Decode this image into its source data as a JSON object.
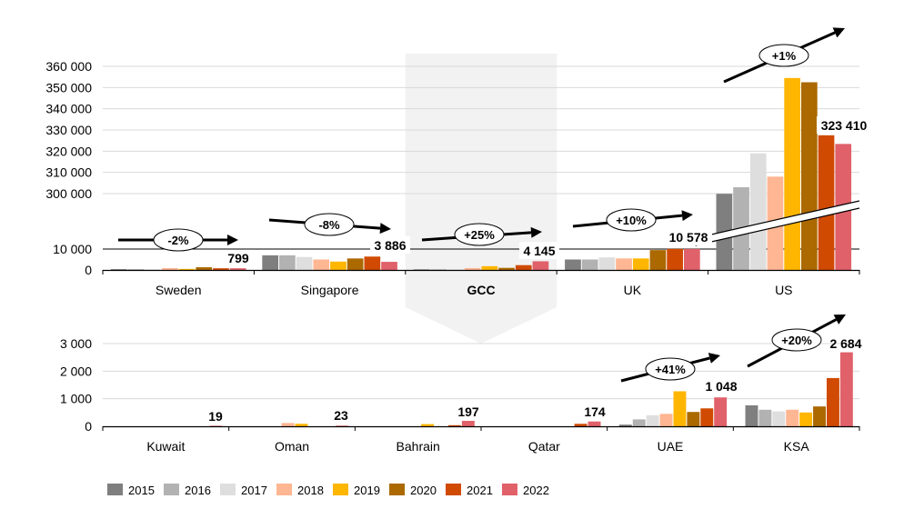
{
  "chart_data": [
    {
      "type": "bar",
      "title": "",
      "xlabel": "",
      "ylabel": "",
      "axis_break": {
        "low_max": 10000,
        "high_min": 300000
      },
      "ylim": [
        0,
        360000
      ],
      "yticks": [
        "0",
        "10 000",
        "300 000",
        "310 000",
        "320 000",
        "330 000",
        "340 000",
        "350 000",
        "360 000"
      ],
      "ytick_values": [
        0,
        10000,
        300000,
        310000,
        320000,
        330000,
        340000,
        350000,
        360000
      ],
      "categories": [
        "Sweden",
        "Singapore",
        "GCC",
        "UK",
        "US"
      ],
      "highlight_category": "GCC",
      "series": [
        {
          "name": "2015",
          "values": [
            400,
            7000,
            300,
            5000,
            299000
          ]
        },
        {
          "name": "2016",
          "values": [
            400,
            7000,
            300,
            5000,
            303000
          ]
        },
        {
          "name": "2017",
          "values": [
            300,
            6200,
            200,
            6000,
            319000
          ]
        },
        {
          "name": "2018",
          "values": [
            900,
            5000,
            900,
            5500,
            308000
          ]
        },
        {
          "name": "2019",
          "values": [
            500,
            4000,
            1800,
            5500,
            354500
          ]
        },
        {
          "name": "2020",
          "values": [
            1300,
            5500,
            1000,
            9500,
            352500
          ]
        },
        {
          "name": "2021",
          "values": [
            800,
            6400,
            2300,
            10800,
            327500
          ]
        },
        {
          "name": "2022",
          "values": [
            799,
            3886,
            4145,
            10578,
            323410
          ]
        }
      ],
      "data_labels": [
        "799",
        "3 886",
        "4 145",
        "10 578",
        "323 410"
      ],
      "growth_labels": [
        "-2%",
        "-8%",
        "+25%",
        "+10%",
        "+1%"
      ]
    },
    {
      "type": "bar",
      "title": "",
      "xlabel": "",
      "ylabel": "",
      "ylim": [
        0,
        3000
      ],
      "yticks": [
        "0",
        "1 000",
        "2 000",
        "3 000"
      ],
      "ytick_values": [
        0,
        1000,
        2000,
        3000
      ],
      "categories": [
        "Kuwait",
        "Oman",
        "Bahrain",
        "Qatar",
        "UAE",
        "KSA"
      ],
      "series": [
        {
          "name": "2015",
          "values": [
            0,
            0,
            0,
            0,
            60,
            760
          ]
        },
        {
          "name": "2016",
          "values": [
            0,
            0,
            0,
            0,
            250,
            600
          ]
        },
        {
          "name": "2017",
          "values": [
            0,
            0,
            0,
            0,
            400,
            540
          ]
        },
        {
          "name": "2018",
          "values": [
            0,
            120,
            0,
            0,
            450,
            600
          ]
        },
        {
          "name": "2019",
          "values": [
            0,
            90,
            80,
            0,
            1270,
            500
          ]
        },
        {
          "name": "2020",
          "values": [
            0,
            0,
            0,
            0,
            520,
            720
          ]
        },
        {
          "name": "2021",
          "values": [
            0,
            0,
            40,
            90,
            650,
            1750
          ]
        },
        {
          "name": "2022",
          "values": [
            19,
            23,
            197,
            174,
            1048,
            2684
          ]
        }
      ],
      "data_labels": [
        "19",
        "23",
        "197",
        "174",
        "1 048",
        "2 684"
      ],
      "growth_labels": [
        "+41%",
        "+20%"
      ],
      "growth_categories": [
        "UAE",
        "KSA"
      ]
    }
  ],
  "legend": {
    "placement": "bottom-left",
    "items": [
      {
        "label": "2015",
        "color": "#7f7f7f"
      },
      {
        "label": "2016",
        "color": "#b2b2b2"
      },
      {
        "label": "2017",
        "color": "#dedede"
      },
      {
        "label": "2018",
        "color": "#ffb692"
      },
      {
        "label": "2019",
        "color": "#ffb600"
      },
      {
        "label": "2020",
        "color": "#ab6900"
      },
      {
        "label": "2021",
        "color": "#d04a02"
      },
      {
        "label": "2022",
        "color": "#e0616a"
      }
    ]
  }
}
